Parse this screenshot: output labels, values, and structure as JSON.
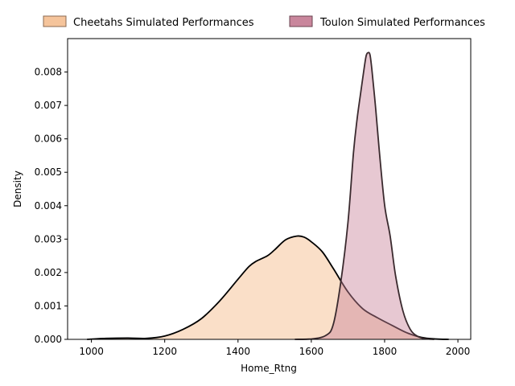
{
  "chart_data": {
    "type": "area",
    "xlabel": "Home_Rtng",
    "ylabel": "Density",
    "xlim": [
      935,
      2035
    ],
    "ylim": [
      0,
      0.009
    ],
    "xticks": [
      1000,
      1200,
      1400,
      1600,
      1800,
      2000
    ],
    "yticks": [
      0.0,
      0.001,
      0.002,
      0.003,
      0.004,
      0.005,
      0.006,
      0.007,
      0.008
    ],
    "ytick_labels": [
      "0.000",
      "0.001",
      "0.002",
      "0.003",
      "0.004",
      "0.005",
      "0.006",
      "0.007",
      "0.008"
    ],
    "legend_position": "top-center, outside plot",
    "series": [
      {
        "name": "Cheetahs Simulated Performances",
        "fill_color": "#f5c49b",
        "line_color": "#000000",
        "x": [
          988,
          1040,
          1100,
          1150,
          1200,
          1250,
          1300,
          1350,
          1400,
          1430,
          1450,
          1480,
          1500,
          1530,
          1560,
          1580,
          1600,
          1630,
          1660,
          1700,
          1740,
          1780,
          1820,
          1860,
          1900,
          1940,
          1975
        ],
        "y": [
          0.0,
          3e-05,
          4e-05,
          3e-05,
          0.0001,
          0.0003,
          0.00062,
          0.00115,
          0.0018,
          0.00218,
          0.00234,
          0.0025,
          0.00268,
          0.00298,
          0.00309,
          0.00306,
          0.00292,
          0.00262,
          0.00212,
          0.00142,
          0.00092,
          0.00065,
          0.00042,
          0.0002,
          6e-05,
          1e-05,
          0.0
        ]
      },
      {
        "name": "Toulon Simulated Performances",
        "fill_color": "#c9869c",
        "line_color": "#3a2a2e",
        "x": [
          1555,
          1600,
          1640,
          1660,
          1680,
          1700,
          1715,
          1725,
          1735,
          1745,
          1750,
          1755,
          1760,
          1765,
          1775,
          1785,
          1800,
          1815,
          1830,
          1850,
          1870,
          1890,
          1910,
          1935
        ],
        "y": [
          0.0,
          1e-05,
          0.00012,
          0.00045,
          0.00168,
          0.0035,
          0.00558,
          0.0066,
          0.0074,
          0.00818,
          0.0085,
          0.00858,
          0.00852,
          0.0081,
          0.00698,
          0.0057,
          0.00402,
          0.0031,
          0.0019,
          0.00085,
          0.0003,
          9e-05,
          2e-05,
          0.0
        ]
      }
    ]
  }
}
